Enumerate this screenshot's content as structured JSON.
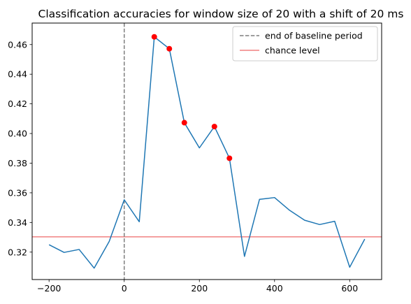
{
  "chart_data": {
    "type": "line",
    "title": "Classification accuracies for window size of 20 with a shift of 20 ms",
    "xlabel": "",
    "ylabel": "",
    "xlim": [
      -245,
      685
    ],
    "ylim": [
      0.3015,
      0.4745
    ],
    "x_ticks": [
      -200,
      0,
      200,
      400,
      600
    ],
    "x_tick_labels": [
      "−200",
      "0",
      "200",
      "400",
      "600"
    ],
    "y_ticks": [
      0.32,
      0.34,
      0.36,
      0.38,
      0.4,
      0.42,
      0.44,
      0.46
    ],
    "y_tick_labels": [
      "0.32",
      "0.34",
      "0.36",
      "0.38",
      "0.40",
      "0.42",
      "0.44",
      "0.46"
    ],
    "grid": false,
    "legend_position": "top-right",
    "series": [
      {
        "x": [
          -200,
          -160,
          -120,
          -80,
          -40,
          0,
          40,
          80,
          120,
          160,
          200,
          240,
          280,
          320,
          360,
          400,
          440,
          480,
          520,
          560,
          600,
          640
        ],
        "values": [
          0.325,
          0.3198,
          0.3218,
          0.3092,
          0.3272,
          0.3553,
          0.3405,
          0.4652,
          0.4572,
          0.4073,
          0.3903,
          0.4047,
          0.3833,
          0.3171,
          0.3556,
          0.3568,
          0.3482,
          0.3415,
          0.3386,
          0.3408,
          0.3098,
          0.3288
        ],
        "color": "#1f77b4"
      }
    ],
    "highlighted_points": {
      "x": [
        80,
        120,
        160,
        240,
        280
      ],
      "values": [
        0.4652,
        0.4572,
        0.4073,
        0.4047,
        0.3833
      ],
      "color": "#ff0000"
    },
    "vertical_line": {
      "x": 0,
      "label": "end of baseline period",
      "color": "#7f7f7f"
    },
    "horizontal_line": {
      "y": 0.3303,
      "label": "chance level",
      "color": "#f08080"
    }
  }
}
